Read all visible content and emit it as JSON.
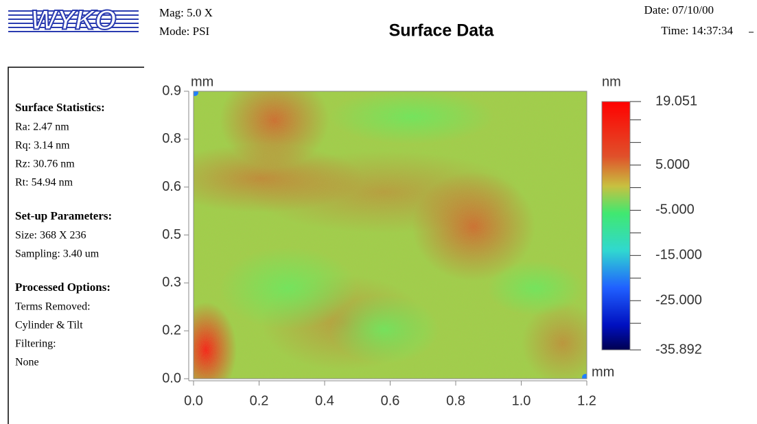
{
  "header": {
    "logo": "WYKO",
    "mag": "Mag: 5.0 X",
    "mode": "Mode: PSI",
    "title": "Surface Data",
    "date": "Date: 07/10/00",
    "time": "Time: 14:37:34"
  },
  "sidebar": [
    {
      "heading": "Surface Statistics:",
      "lines": [
        "Ra: 2.47 nm",
        "Rq: 3.14 nm",
        "Rz: 30.76 nm",
        "Rt: 54.94 nm"
      ]
    },
    {
      "heading": "Set-up Parameters:",
      "lines": [
        "Size: 368 X 236",
        "Sampling: 3.40 um"
      ]
    },
    {
      "heading": "Processed Options:",
      "lines": [
        "Terms Removed:",
        "Cylinder & Tilt",
        "Filtering:",
        "None"
      ]
    }
  ],
  "chart_data": {
    "type": "heatmap",
    "x_unit": "mm",
    "y_unit": "mm",
    "colorbar_unit": "nm",
    "xlim": [
      0,
      1.2
    ],
    "xticks": [
      {
        "value": 0,
        "label": "0.0"
      },
      0.2,
      0.4,
      0.6,
      0.8,
      {
        "value": 1,
        "label": "1.0"
      },
      1.2
    ],
    "ylim": [
      0,
      0.9
    ],
    "yticks": [
      {
        "value": 0,
        "label": "0.0"
      },
      {
        "value": 0.15,
        "label": "0.2"
      },
      0.3,
      {
        "value": 0.45,
        "label": "0.5"
      },
      0.6,
      {
        "value": 0.75,
        "label": "0.8"
      },
      0.9
    ],
    "zlim": [
      -35.892,
      19.051
    ],
    "zticks": [
      {
        "value": 19.051,
        "label": "19.051"
      },
      {
        "value": 5,
        "label": "5.000"
      },
      {
        "value": -5,
        "label": "-5.000"
      },
      {
        "value": -15,
        "label": "-15.000"
      },
      {
        "value": -25,
        "label": "-25.000"
      },
      {
        "value": -35.892,
        "label": "-35.892"
      }
    ],
    "zminor": [
      15,
      10,
      0,
      -10,
      -20,
      -30
    ]
  }
}
